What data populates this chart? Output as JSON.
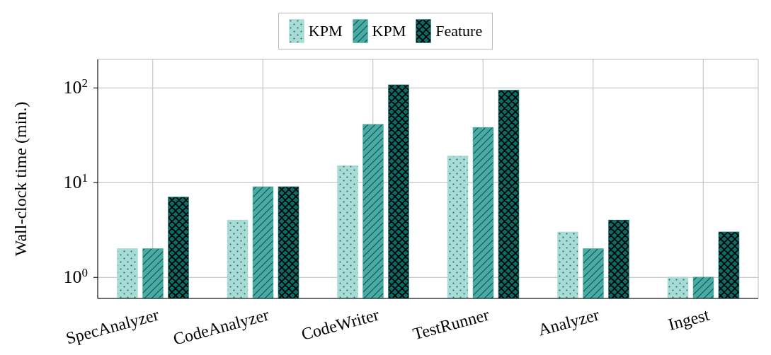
{
  "chart_data": {
    "type": "bar",
    "ylabel": "Wall-clock time (min.)",
    "categories": [
      "SpecAnalyzer",
      "CodeAnalyzer",
      "CodeWriter",
      "TestRunner",
      "Analyzer",
      "Ingest"
    ],
    "series": [
      {
        "name": "KPM",
        "color": "#a9dbd6",
        "values": [
          2,
          4,
          15,
          19,
          3,
          1
        ]
      },
      {
        "name": "KPM",
        "color": "#4aaba4",
        "values": [
          2,
          9,
          41,
          38,
          2,
          1
        ]
      },
      {
        "name": "Feature",
        "color": "#0b6b67",
        "values": [
          7,
          9,
          107,
          94,
          4,
          3
        ]
      }
    ],
    "log": true,
    "ylim": [
      0.6,
      200
    ],
    "yticks": [
      {
        "value": 1,
        "label": "10$^{0}$"
      },
      {
        "value": 10,
        "label": "10$^{1}$"
      },
      {
        "value": 100,
        "label": "10$^{2}$"
      }
    ],
    "grid": true,
    "legend": "top"
  }
}
